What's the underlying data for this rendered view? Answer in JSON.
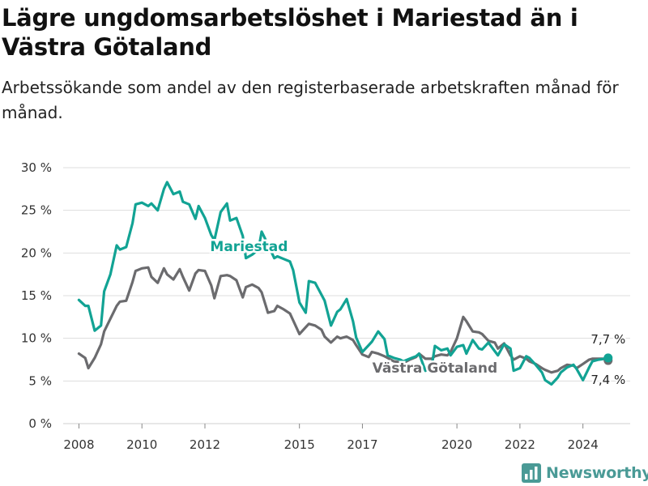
{
  "title": "Lägre ungdomsarbetslöshet i Mariestad än i Västra Götaland",
  "subtitle": "Arbetssökande som andel av den registerbaserade arbetskraften månad för månad.",
  "brand": "Newsworthy",
  "colors": {
    "mariestad": "#12a394",
    "vg": "#6b6b6e",
    "grid": "#dddddd",
    "text": "#333333"
  },
  "chart_data": {
    "type": "line",
    "title": "Lägre ungdomsarbetslöshet i Mariestad än i Västra Götaland",
    "xlabel": "",
    "ylabel": "",
    "ylim": [
      0,
      30
    ],
    "xlim": [
      2007.5,
      2025.5
    ],
    "grid": true,
    "x_ticks": [
      2008,
      2010,
      2012,
      2015,
      2017,
      2020,
      2022,
      2024
    ],
    "x_tick_labels": [
      "2008",
      "2010",
      "2012",
      "2015",
      "2017",
      "2020",
      "2022",
      "2024"
    ],
    "y_ticks": [
      0,
      5,
      10,
      15,
      20,
      25,
      30
    ],
    "y_tick_labels": [
      "0 %",
      "5 %",
      "10 %",
      "15 %",
      "20 %",
      "25 %",
      "30 %"
    ],
    "series": [
      {
        "name": "Mariestad",
        "end_label": "7,7 %",
        "x": [
          2008.0,
          2008.2,
          2008.3,
          2008.5,
          2008.7,
          2008.8,
          2009.0,
          2009.2,
          2009.3,
          2009.5,
          2009.7,
          2009.8,
          2010.0,
          2010.2,
          2010.3,
          2010.5,
          2010.7,
          2010.8,
          2011.0,
          2011.2,
          2011.3,
          2011.5,
          2011.7,
          2011.8,
          2012.0,
          2012.2,
          2012.3,
          2012.5,
          2012.7,
          2012.8,
          2013.0,
          2013.2,
          2013.3,
          2013.5,
          2013.7,
          2013.8,
          2014.0,
          2014.2,
          2014.3,
          2014.5,
          2014.7,
          2014.8,
          2015.0,
          2015.2,
          2015.3,
          2015.5,
          2015.7,
          2015.8,
          2016.0,
          2016.2,
          2016.3,
          2016.5,
          2016.7,
          2016.8,
          2017.0,
          2017.2,
          2017.3,
          2017.5,
          2017.7,
          2017.8,
          2018.0,
          2018.2,
          2018.3,
          2018.5,
          2018.7,
          2018.8,
          2019.0,
          2019.2,
          2019.3,
          2019.5,
          2019.7,
          2019.8,
          2020.0,
          2020.2,
          2020.3,
          2020.5,
          2020.7,
          2020.8,
          2021.0,
          2021.2,
          2021.3,
          2021.5,
          2021.7,
          2021.8,
          2022.0,
          2022.2,
          2022.3,
          2022.5,
          2022.7,
          2022.8,
          2023.0,
          2023.2,
          2023.3,
          2023.5,
          2023.7,
          2023.8,
          2024.0,
          2024.2,
          2024.3,
          2024.5,
          2024.7,
          2024.8
        ],
        "values": [
          14.5,
          13.8,
          13.8,
          10.9,
          11.5,
          15.5,
          17.5,
          20.9,
          20.4,
          20.7,
          23.5,
          25.7,
          25.9,
          25.5,
          25.8,
          25.0,
          27.5,
          28.3,
          26.9,
          27.2,
          26.0,
          25.7,
          24.0,
          25.5,
          24.1,
          22.1,
          21.5,
          24.8,
          25.8,
          23.8,
          24.1,
          22.0,
          19.4,
          19.8,
          20.4,
          22.5,
          21.0,
          19.4,
          19.6,
          19.3,
          19.0,
          18.0,
          14.2,
          13.0,
          16.7,
          16.5,
          15.1,
          14.4,
          11.5,
          13.1,
          13.4,
          14.6,
          12.0,
          10.1,
          8.4,
          9.2,
          9.6,
          10.8,
          9.9,
          8.0,
          7.7,
          7.5,
          7.3,
          7.6,
          7.9,
          8.2,
          6.2,
          6.7,
          9.1,
          8.6,
          8.8,
          8.0,
          9.0,
          9.2,
          8.2,
          9.8,
          8.8,
          8.7,
          9.5,
          8.5,
          8.0,
          9.3,
          8.8,
          6.2,
          6.5,
          7.9,
          7.7,
          6.9,
          6.0,
          5.1,
          4.6,
          5.4,
          6.0,
          6.6,
          6.9,
          6.4,
          5.1,
          6.6,
          7.3,
          7.5,
          7.6,
          7.7
        ]
      },
      {
        "name": "Västra Götaland",
        "end_label": "7,4 %",
        "x": [
          2008.0,
          2008.2,
          2008.3,
          2008.5,
          2008.7,
          2008.8,
          2009.0,
          2009.2,
          2009.3,
          2009.5,
          2009.7,
          2009.8,
          2010.0,
          2010.2,
          2010.3,
          2010.5,
          2010.7,
          2010.8,
          2011.0,
          2011.2,
          2011.3,
          2011.5,
          2011.7,
          2011.8,
          2012.0,
          2012.2,
          2012.3,
          2012.5,
          2012.7,
          2012.8,
          2013.0,
          2013.2,
          2013.3,
          2013.5,
          2013.7,
          2013.8,
          2014.0,
          2014.2,
          2014.3,
          2014.5,
          2014.7,
          2014.8,
          2015.0,
          2015.2,
          2015.3,
          2015.5,
          2015.7,
          2015.8,
          2016.0,
          2016.2,
          2016.3,
          2016.5,
          2016.7,
          2016.8,
          2017.0,
          2017.2,
          2017.3,
          2017.5,
          2017.7,
          2017.8,
          2018.0,
          2018.2,
          2018.3,
          2018.5,
          2018.7,
          2018.8,
          2019.0,
          2019.2,
          2019.3,
          2019.5,
          2019.7,
          2019.8,
          2020.0,
          2020.2,
          2020.3,
          2020.5,
          2020.7,
          2020.8,
          2021.0,
          2021.2,
          2021.3,
          2021.5,
          2021.7,
          2021.8,
          2022.0,
          2022.2,
          2022.3,
          2022.5,
          2022.7,
          2022.8,
          2023.0,
          2023.2,
          2023.3,
          2023.5,
          2023.7,
          2023.8,
          2024.0,
          2024.2,
          2024.3,
          2024.5,
          2024.7,
          2024.8
        ],
        "values": [
          8.2,
          7.7,
          6.5,
          7.7,
          9.3,
          10.8,
          12.3,
          13.8,
          14.3,
          14.4,
          16.6,
          17.9,
          18.2,
          18.3,
          17.2,
          16.5,
          18.2,
          17.5,
          16.9,
          18.1,
          17.2,
          15.6,
          17.6,
          18.0,
          17.9,
          16.2,
          14.7,
          17.3,
          17.4,
          17.3,
          16.8,
          14.8,
          16.0,
          16.3,
          15.9,
          15.4,
          13.0,
          13.2,
          13.8,
          13.4,
          12.9,
          12.1,
          10.5,
          11.3,
          11.7,
          11.5,
          11.0,
          10.2,
          9.5,
          10.2,
          10.0,
          10.2,
          9.8,
          9.2,
          8.1,
          7.8,
          8.4,
          8.2,
          7.9,
          7.7,
          7.3,
          7.2,
          7.1,
          7.5,
          7.8,
          8.2,
          7.6,
          7.6,
          7.9,
          8.1,
          8.0,
          8.4,
          10.0,
          12.5,
          12.0,
          10.8,
          10.7,
          10.5,
          9.7,
          9.5,
          8.8,
          9.4,
          8.0,
          7.5,
          7.9,
          7.6,
          7.3,
          7.0,
          6.5,
          6.3,
          6.0,
          6.2,
          6.5,
          6.9,
          6.8,
          6.5,
          7.0,
          7.5,
          7.6,
          7.6,
          7.6,
          7.4
        ]
      }
    ],
    "annotations": [
      {
        "text": "Mariestad",
        "series": "Mariestad"
      },
      {
        "text": "Västra Götaland",
        "series": "Västra Götaland"
      }
    ]
  }
}
